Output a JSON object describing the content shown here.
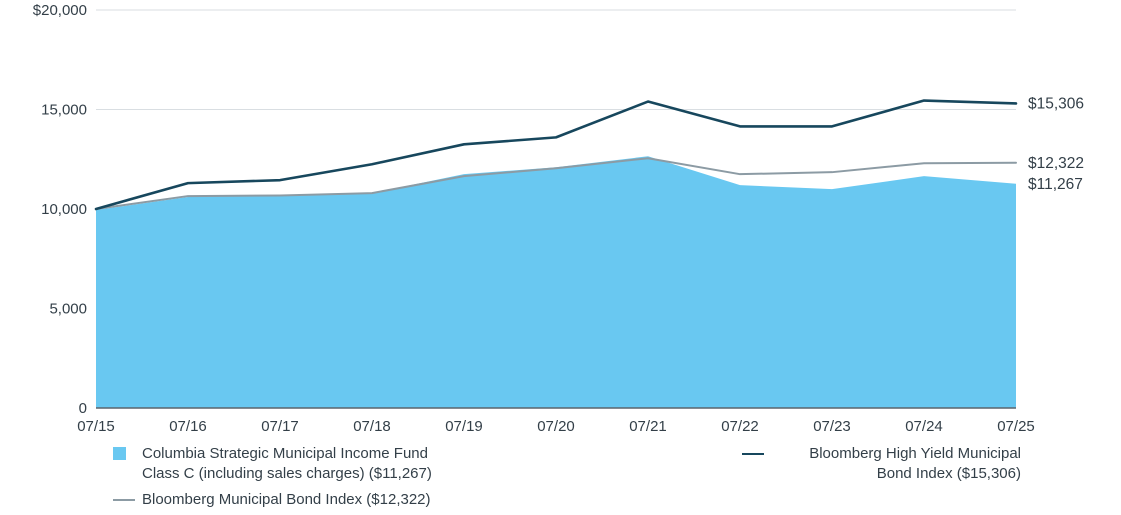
{
  "chart_data": {
    "type": "area",
    "x_categories": [
      "07/15",
      "07/16",
      "07/17",
      "07/18",
      "07/19",
      "07/20",
      "07/21",
      "07/22",
      "07/23",
      "07/24",
      "07/25"
    ],
    "ylim": [
      0,
      20000
    ],
    "yticks": [
      {
        "value": 0,
        "label": "0"
      },
      {
        "value": 5000,
        "label": "5,000"
      },
      {
        "value": 10000,
        "label": "10,000"
      },
      {
        "value": 15000,
        "label": "15,000"
      },
      {
        "value": 20000,
        "label": "$20,000"
      }
    ],
    "grid": "horizontal",
    "legend_position": "bottom",
    "series": [
      {
        "key": "fund",
        "name": "Columbia Strategic Municipal Income Fund Class C (including sales charges) ($11,267)",
        "type": "area",
        "color": "#69C8F1",
        "line_width": 0,
        "end_label": "$11,267",
        "values": [
          9950,
          10600,
          10700,
          10800,
          11750,
          12100,
          12650,
          11200,
          11000,
          11650,
          11267
        ]
      },
      {
        "key": "muni_index",
        "name": "Bloomberg Municipal Bond Index ($12,322)",
        "type": "line",
        "color": "#8C9BA4",
        "line_width": 2,
        "end_label": "$12,322",
        "values": [
          10000,
          10650,
          10680,
          10800,
          11650,
          12050,
          12550,
          11750,
          11850,
          12300,
          12322
        ]
      },
      {
        "key": "high_yield_index",
        "name": "Bloomberg High Yield Municipal Bond Index ($15,306)",
        "type": "line",
        "color": "#17475D",
        "line_width": 2.6,
        "end_label": "$15,306",
        "values": [
          10000,
          11300,
          11450,
          12250,
          13250,
          13600,
          15400,
          14150,
          14150,
          15450,
          15306
        ]
      }
    ]
  },
  "legend": {
    "fund_label": "Columbia Strategic Municipal Income Fund Class C (including sales charges) ($11,267)",
    "muni_index_label": "Bloomberg Municipal Bond Index ($12,322)",
    "high_yield_index_label": "Bloomberg High Yield Municipal Bond Index ($15,306)"
  },
  "end_labels": {
    "high_yield_index": "$15,306",
    "muni_index": "$12,322",
    "fund": "$11,267"
  },
  "colors": {
    "text": "#333F48",
    "grid": "#D9DEE2",
    "axis": "#5A646C",
    "background": "#FFFFFF"
  }
}
